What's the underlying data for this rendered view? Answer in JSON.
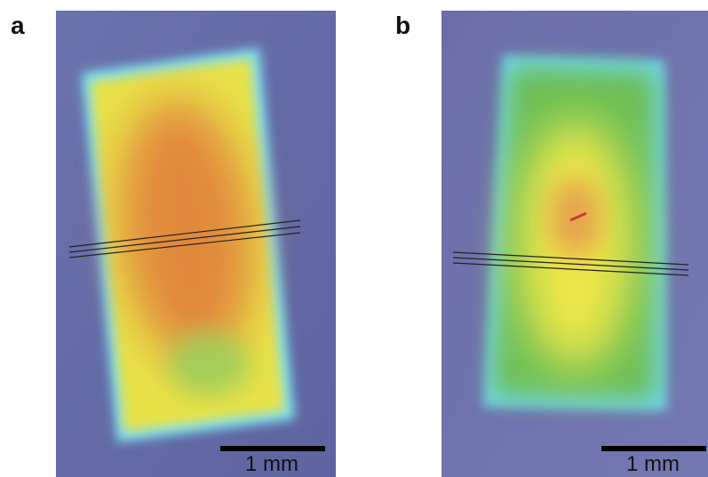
{
  "panels": [
    {
      "label": "a",
      "scale_bar": "1 mm"
    },
    {
      "label": "b",
      "scale_bar": "1 mm"
    }
  ]
}
